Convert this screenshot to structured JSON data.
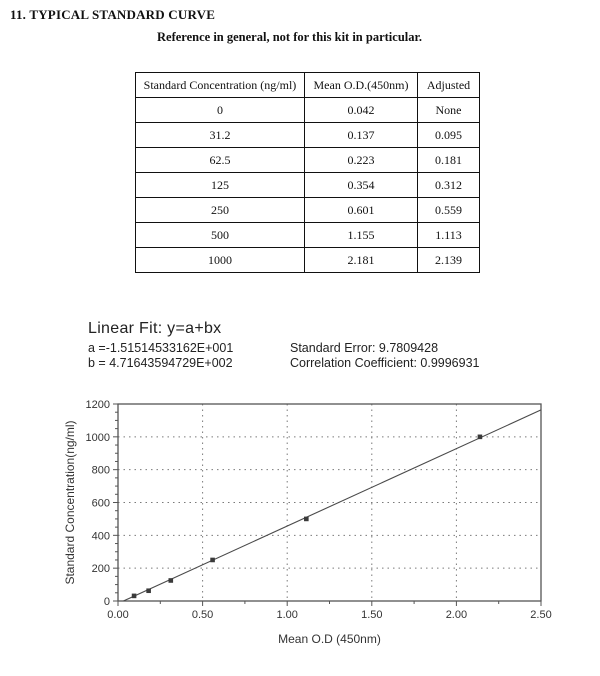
{
  "page": {
    "section_title": "11. TYPICAL STANDARD CURVE",
    "subtitle": "Reference in general, not for this kit in particular."
  },
  "table": {
    "headers": [
      "Standard Concentration (ng/ml)",
      "Mean O.D.(450nm)",
      "Adjusted"
    ],
    "rows": [
      [
        "0",
        "0.042",
        "None"
      ],
      [
        "31.2",
        "0.137",
        "0.095"
      ],
      [
        "62.5",
        "0.223",
        "0.181"
      ],
      [
        "125",
        "0.354",
        "0.312"
      ],
      [
        "250",
        "0.601",
        "0.559"
      ],
      [
        "500",
        "1.155",
        "1.113"
      ],
      [
        "1000",
        "2.181",
        "2.139"
      ]
    ]
  },
  "linear_fit": {
    "title": "Linear Fit: y=a+bx",
    "a_label": "a =-1.51514533162E+001",
    "b_label": "b = 4.71643594729E+002",
    "standard_error": "Standard Error: 9.7809428",
    "correlation": "Correlation Coefficient: 0.9996931"
  },
  "chart_data": {
    "type": "scatter",
    "title": "",
    "xlabel": "Mean O.D (450nm)",
    "ylabel": "Standard Concentration(ng/ml)",
    "xlim": [
      0,
      2.5
    ],
    "ylim": [
      0,
      1200
    ],
    "x_ticks": [
      0,
      0.5,
      1.0,
      1.5,
      2.0,
      2.5
    ],
    "x_tick_labels": [
      "0.00",
      "0.50",
      "1.00",
      "1.50",
      "2.00",
      "2.50"
    ],
    "y_ticks": [
      0,
      200,
      400,
      600,
      800,
      1000,
      1200
    ],
    "x_minor_step": 0.25,
    "y_minor_step": 50,
    "grid": "dotted-at-major-ticks-inside",
    "legend": "none",
    "marker": "square",
    "points": [
      {
        "x": 0.095,
        "y": 31.2
      },
      {
        "x": 0.181,
        "y": 62.5
      },
      {
        "x": 0.312,
        "y": 125
      },
      {
        "x": 0.559,
        "y": 250
      },
      {
        "x": 1.113,
        "y": 500
      },
      {
        "x": 2.139,
        "y": 1000
      }
    ],
    "fit_line": {
      "a": -15.1514533162,
      "b": 471.643594729,
      "x_start": 0.0321,
      "x_end": 2.5
    },
    "colors": {
      "line": "#4a4a4a",
      "marker": "#3a3a3a",
      "grid": "#7a7a7a",
      "border": "#555555",
      "tick": "#555555",
      "text": "#333333"
    }
  }
}
